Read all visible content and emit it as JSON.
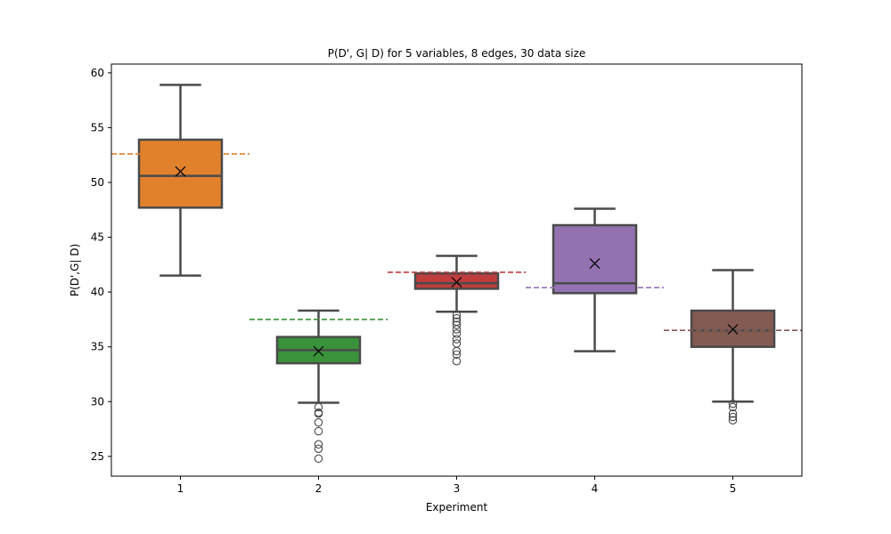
{
  "chart_data": {
    "type": "box",
    "title": "P(D', G| D) for 5 variables, 8 edges, 30 data size",
    "xlabel": "Experiment",
    "ylabel": "P(D',G| D)",
    "ylim": [
      23.2,
      60.8
    ],
    "yticks": [
      25,
      30,
      35,
      40,
      45,
      50,
      55,
      60
    ],
    "grid": false,
    "categories": [
      "1",
      "2",
      "3",
      "4",
      "5"
    ],
    "boxes": [
      {
        "category": "1",
        "color": "#e1812c",
        "whisker_low": 41.5,
        "q1": 47.7,
        "median": 50.6,
        "q3": 53.9,
        "whisker_high": 58.9,
        "mean": 51.0,
        "reference": 52.6,
        "outliers": []
      },
      {
        "category": "2",
        "color": "#3a923a",
        "whisker_low": 29.9,
        "q1": 33.5,
        "median": 34.7,
        "q3": 35.9,
        "whisker_high": 38.3,
        "mean": 34.6,
        "reference": 37.5,
        "outliers": [
          29.5,
          29.0,
          28.9,
          28.1,
          27.3,
          26.1,
          25.7,
          24.8
        ]
      },
      {
        "category": "3",
        "color": "#c03d3e",
        "whisker_low": 38.2,
        "q1": 40.3,
        "median": 40.8,
        "q3": 41.7,
        "whisker_high": 43.3,
        "mean": 40.9,
        "reference": 41.8,
        "outliers": [
          37.9,
          37.6,
          37.3,
          37.0,
          36.6,
          36.2,
          35.7,
          35.3,
          34.6,
          34.3,
          33.7
        ]
      },
      {
        "category": "4",
        "color": "#9372b2",
        "whisker_low": 34.6,
        "q1": 39.9,
        "median": 40.8,
        "q3": 46.1,
        "whisker_high": 47.6,
        "mean": 42.6,
        "reference": 40.4,
        "outliers": []
      },
      {
        "category": "5",
        "color": "#845b53",
        "whisker_low": 30.0,
        "q1": 35.0,
        "median": 36.5,
        "q3": 38.3,
        "whisker_high": 42.0,
        "mean": 36.6,
        "reference": 36.5,
        "outliers": [
          29.8,
          29.5,
          28.9,
          28.6,
          28.3
        ]
      }
    ]
  }
}
